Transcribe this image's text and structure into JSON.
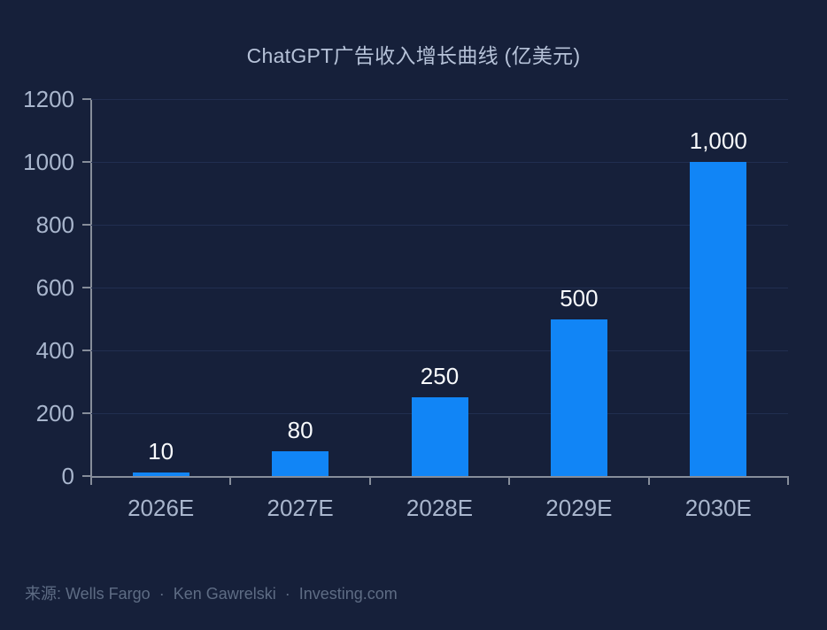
{
  "chart_data": {
    "type": "bar",
    "title": "ChatGPT广告收入增长曲线 (亿美元)",
    "categories": [
      "2026E",
      "2027E",
      "2028E",
      "2029E",
      "2030E"
    ],
    "values": [
      10,
      80,
      250,
      500,
      1000
    ],
    "value_labels": [
      "10",
      "80",
      "250",
      "500",
      "1,000"
    ],
    "ylim": [
      0,
      1200
    ],
    "yticks": [
      0,
      200,
      400,
      600,
      800,
      1000,
      1200
    ],
    "xlabel": "",
    "ylabel": "",
    "grid": true,
    "legend": false,
    "bar_color": "#1185f6",
    "background_color": "#16203a",
    "axis_color": "#868d9a",
    "tick_label_color": "#a9b6cd",
    "value_label_color": "#f8fafc",
    "source": "来源: Wells Fargo  ·  Ken Gawrelski  ·  Investing.com"
  }
}
